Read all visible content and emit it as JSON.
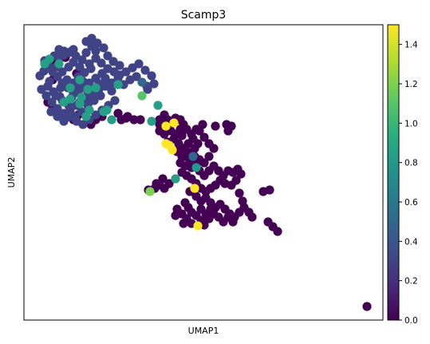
{
  "chart_data": {
    "type": "scatter",
    "title": "Scamp3",
    "xlabel": "UMAP1",
    "ylabel": "UMAP2",
    "colorbar": {
      "colormap": "viridis",
      "range": [
        0.0,
        1.5
      ],
      "ticks": [
        "0.0",
        "0.2",
        "0.4",
        "0.6",
        "0.8",
        "1.0",
        "1.2",
        "1.4"
      ]
    },
    "grid": false,
    "x_ticks_shown": false,
    "y_ticks_shown": false,
    "points": [
      [
        55,
        89,
        0.3
      ],
      [
        62,
        102,
        0.3
      ],
      [
        50,
        95,
        0.3
      ],
      [
        68,
        78,
        0.0
      ],
      [
        74,
        72,
        0.3
      ],
      [
        80,
        69,
        0.3
      ],
      [
        88,
        65,
        0.3
      ],
      [
        95,
        70,
        0.3
      ],
      [
        103,
        75,
        0.3
      ],
      [
        112,
        80,
        0.3
      ],
      [
        120,
        73,
        0.3
      ],
      [
        127,
        79,
        0.3
      ],
      [
        135,
        70,
        0.3
      ],
      [
        142,
        77,
        0.3
      ],
      [
        150,
        82,
        0.3
      ],
      [
        158,
        90,
        0.3
      ],
      [
        166,
        85,
        0.3
      ],
      [
        174,
        80,
        0.3
      ],
      [
        182,
        88,
        0.3
      ],
      [
        190,
        95,
        0.3
      ],
      [
        193,
        105,
        0.3
      ],
      [
        185,
        112,
        0.3
      ],
      [
        178,
        103,
        0.5
      ],
      [
        171,
        96,
        0.3
      ],
      [
        163,
        100,
        0.3
      ],
      [
        155,
        106,
        0.3
      ],
      [
        148,
        98,
        0.3
      ],
      [
        140,
        104,
        0.3
      ],
      [
        132,
        98,
        0.3
      ],
      [
        124,
        105,
        0.3
      ],
      [
        117,
        112,
        0.3
      ],
      [
        110,
        118,
        0.3
      ],
      [
        103,
        125,
        0.3
      ],
      [
        96,
        132,
        0.3
      ],
      [
        88,
        138,
        0.3
      ],
      [
        80,
        142,
        0.3
      ],
      [
        72,
        136,
        0.3
      ],
      [
        65,
        128,
        0.3
      ],
      [
        58,
        120,
        0.3
      ],
      [
        52,
        112,
        0.3
      ],
      [
        60,
        108,
        0.3
      ],
      [
        67,
        115,
        0.3
      ],
      [
        75,
        121,
        0.3
      ],
      [
        82,
        128,
        0.3
      ],
      [
        90,
        122,
        0.3
      ],
      [
        98,
        116,
        0.3
      ],
      [
        105,
        110,
        0.3
      ],
      [
        112,
        104,
        0.3
      ],
      [
        120,
        98,
        0.3
      ],
      [
        128,
        92,
        0.3
      ],
      [
        135,
        86,
        0.3
      ],
      [
        143,
        90,
        0.3
      ],
      [
        150,
        94,
        0.3
      ],
      [
        72,
        96,
        0.3
      ],
      [
        78,
        104,
        0.3
      ],
      [
        85,
        110,
        0.3
      ],
      [
        92,
        104,
        0.3
      ],
      [
        98,
        96,
        0.3
      ],
      [
        106,
        91,
        0.3
      ],
      [
        114,
        86,
        0.3
      ],
      [
        64,
        140,
        0.3
      ],
      [
        72,
        146,
        0.3
      ],
      [
        80,
        152,
        0.3
      ],
      [
        88,
        146,
        0.3
      ],
      [
        96,
        152,
        0.3
      ],
      [
        104,
        156,
        0.3
      ],
      [
        112,
        150,
        0.3
      ],
      [
        120,
        144,
        0.3
      ],
      [
        128,
        138,
        0.3
      ],
      [
        136,
        132,
        0.3
      ],
      [
        144,
        126,
        0.3
      ],
      [
        126,
        120,
        0.3
      ],
      [
        118,
        126,
        0.3
      ],
      [
        110,
        132,
        0.3
      ],
      [
        102,
        140,
        0.3
      ],
      [
        94,
        146,
        0.3
      ],
      [
        86,
        132,
        0.3
      ],
      [
        78,
        126,
        0.3
      ],
      [
        70,
        120,
        0.3
      ],
      [
        100,
        128,
        0.3
      ],
      [
        108,
        124,
        0.3
      ],
      [
        116,
        118,
        0.3
      ],
      [
        124,
        112,
        0.3
      ],
      [
        132,
        108,
        0.3
      ],
      [
        140,
        114,
        0.3
      ],
      [
        92,
        116,
        0.3
      ],
      [
        84,
        100,
        0.3
      ],
      [
        76,
        110,
        0.3
      ],
      [
        96,
        108,
        0.3
      ],
      [
        104,
        102,
        0.3
      ],
      [
        60,
        82,
        0.3
      ],
      [
        66,
        90,
        0.3
      ],
      [
        70,
        84,
        0.3
      ],
      [
        78,
        90,
        0.3
      ],
      [
        86,
        84,
        0.3
      ],
      [
        92,
        78,
        0.3
      ],
      [
        100,
        84,
        0.3
      ],
      [
        108,
        66,
        0.3
      ],
      [
        115,
        58,
        0.3
      ],
      [
        108,
        52,
        0.3
      ],
      [
        115,
        48,
        0.3
      ],
      [
        122,
        54,
        0.3
      ],
      [
        130,
        60,
        0.3
      ],
      [
        120,
        64,
        0.3
      ],
      [
        86,
        66,
        0.3
      ],
      [
        92,
        62,
        0.3
      ],
      [
        80,
        64,
        0.3
      ],
      [
        74,
        62,
        0.3
      ],
      [
        68,
        70,
        0.3
      ],
      [
        56,
        76,
        0.3
      ],
      [
        56,
        80,
        0.85
      ],
      [
        62,
        74,
        0.85
      ],
      [
        74,
        80,
        0.85
      ],
      [
        88,
        124,
        0.85
      ],
      [
        102,
        122,
        0.85
      ],
      [
        100,
        130,
        0.85
      ],
      [
        112,
        138,
        0.85
      ],
      [
        108,
        146,
        0.85
      ],
      [
        130,
        140,
        0.85
      ],
      [
        134,
        138,
        0.85
      ],
      [
        148,
        106,
        0.85
      ],
      [
        158,
        148,
        0.0
      ],
      [
        148,
        142,
        0.0
      ],
      [
        140,
        150,
        0.85
      ],
      [
        114,
        156,
        0.0
      ],
      [
        120,
        150,
        0.0
      ],
      [
        128,
        146,
        0.0
      ],
      [
        92,
        150,
        0.0
      ],
      [
        98,
        144,
        0.0
      ],
      [
        82,
        148,
        0.0
      ],
      [
        66,
        134,
        0.0
      ],
      [
        60,
        128,
        0.0
      ],
      [
        100,
        100,
        0.85
      ],
      [
        80,
        128,
        0.85
      ],
      [
        88,
        110,
        0.85
      ],
      [
        110,
        112,
        0.85
      ],
      [
        120,
        110,
        0.85
      ],
      [
        184,
        108,
        0.3
      ],
      [
        198,
        132,
        0.85
      ],
      [
        178,
        120,
        1.1
      ],
      [
        176,
        150,
        0.0
      ],
      [
        168,
        150,
        0.0
      ],
      [
        160,
        146,
        0.0
      ],
      [
        152,
        150,
        0.0
      ],
      [
        96,
        92,
        0.0
      ],
      [
        66,
        100,
        0.0
      ],
      [
        60,
        108,
        0.0
      ],
      [
        72,
        74,
        0.0
      ],
      [
        82,
        72,
        0.0
      ],
      [
        200,
        150,
        0.0
      ],
      [
        190,
        152,
        0.85
      ],
      [
        206,
        144,
        0.0
      ],
      [
        210,
        150,
        0.0
      ],
      [
        214,
        156,
        0.0
      ],
      [
        216,
        152,
        0.0
      ],
      [
        220,
        148,
        0.0
      ],
      [
        226,
        150,
        0.0
      ],
      [
        218,
        154,
        1.5
      ],
      [
        208,
        158,
        1.5
      ],
      [
        200,
        156,
        0.0
      ],
      [
        230,
        156,
        0.0
      ],
      [
        234,
        162,
        0.0
      ],
      [
        226,
        162,
        0.0
      ],
      [
        220,
        168,
        0.0
      ],
      [
        214,
        164,
        0.0
      ],
      [
        206,
        168,
        0.0
      ],
      [
        200,
        164,
        0.0
      ],
      [
        210,
        178,
        0.0
      ],
      [
        218,
        174,
        0.0
      ],
      [
        224,
        180,
        0.0
      ],
      [
        230,
        186,
        0.0
      ],
      [
        236,
        180,
        0.0
      ],
      [
        242,
        174,
        0.0
      ],
      [
        248,
        180,
        0.0
      ],
      [
        244,
        186,
        0.0
      ],
      [
        238,
        192,
        0.0
      ],
      [
        232,
        196,
        0.0
      ],
      [
        226,
        204,
        0.0
      ],
      [
        232,
        208,
        0.0
      ],
      [
        238,
        202,
        0.0
      ],
      [
        244,
        196,
        0.0
      ],
      [
        250,
        200,
        0.0
      ],
      [
        246,
        206,
        0.0
      ],
      [
        240,
        210,
        0.0
      ],
      [
        242,
        196,
        0.5
      ],
      [
        246,
        210,
        0.8
      ],
      [
        208,
        180,
        1.5
      ],
      [
        212,
        182,
        1.5
      ],
      [
        216,
        188,
        1.5
      ],
      [
        222,
        190,
        0.0
      ],
      [
        228,
        196,
        0.0
      ],
      [
        234,
        190,
        0.0
      ],
      [
        250,
        164,
        0.0
      ],
      [
        256,
        172,
        0.0
      ],
      [
        262,
        180,
        0.0
      ],
      [
        268,
        186,
        0.0
      ],
      [
        262,
        196,
        0.0
      ],
      [
        256,
        204,
        0.0
      ],
      [
        250,
        214,
        0.0
      ],
      [
        256,
        220,
        0.0
      ],
      [
        262,
        214,
        0.0
      ],
      [
        268,
        208,
        0.0
      ],
      [
        274,
        214,
        0.0
      ],
      [
        280,
        220,
        0.0
      ],
      [
        286,
        214,
        0.0
      ],
      [
        292,
        216,
        0.0
      ],
      [
        298,
        212,
        0.0
      ],
      [
        302,
        218,
        0.0
      ],
      [
        296,
        226,
        0.0
      ],
      [
        290,
        232,
        0.0
      ],
      [
        282,
        230,
        0.0
      ],
      [
        276,
        226,
        0.0
      ],
      [
        270,
        232,
        0.0
      ],
      [
        264,
        236,
        0.0
      ],
      [
        258,
        240,
        0.0
      ],
      [
        252,
        236,
        0.0
      ],
      [
        246,
        230,
        0.0
      ],
      [
        240,
        224,
        0.0
      ],
      [
        234,
        220,
        0.0
      ],
      [
        228,
        216,
        0.0
      ],
      [
        220,
        224,
        0.85
      ],
      [
        212,
        230,
        0.0
      ],
      [
        206,
        236,
        0.0
      ],
      [
        200,
        232,
        0.0
      ],
      [
        194,
        236,
        0.0
      ],
      [
        186,
        238,
        0.0
      ],
      [
        188,
        240,
        1.2
      ],
      [
        196,
        230,
        0.0
      ],
      [
        204,
        224,
        0.0
      ],
      [
        244,
        236,
        1.5
      ],
      [
        238,
        240,
        0.0
      ],
      [
        246,
        246,
        0.0
      ],
      [
        252,
        252,
        0.0
      ],
      [
        258,
        248,
        0.0
      ],
      [
        264,
        254,
        0.0
      ],
      [
        270,
        260,
        0.0
      ],
      [
        276,
        256,
        0.0
      ],
      [
        282,
        262,
        0.0
      ],
      [
        288,
        268,
        0.0
      ],
      [
        294,
        272,
        0.0
      ],
      [
        300,
        266,
        0.0
      ],
      [
        306,
        260,
        0.0
      ],
      [
        312,
        266,
        0.0
      ],
      [
        316,
        272,
        0.0
      ],
      [
        300,
        242,
        0.0
      ],
      [
        304,
        252,
        0.0
      ],
      [
        330,
        240,
        0.0
      ],
      [
        338,
        238,
        0.0
      ],
      [
        232,
        254,
        0.0
      ],
      [
        236,
        260,
        0.0
      ],
      [
        240,
        266,
        0.0
      ],
      [
        246,
        270,
        0.0
      ],
      [
        252,
        276,
        0.0
      ],
      [
        256,
        282,
        0.0
      ],
      [
        248,
        283,
        1.5
      ],
      [
        240,
        280,
        0.0
      ],
      [
        234,
        274,
        0.0
      ],
      [
        228,
        268,
        0.0
      ],
      [
        222,
        262,
        0.0
      ],
      [
        220,
        270,
        0.0
      ],
      [
        230,
        280,
        0.0
      ],
      [
        262,
        274,
        0.0
      ],
      [
        268,
        268,
        0.0
      ],
      [
        274,
        272,
        0.0
      ],
      [
        280,
        278,
        0.0
      ],
      [
        286,
        272,
        0.0
      ],
      [
        292,
        278,
        0.0
      ],
      [
        264,
        262,
        0.0
      ],
      [
        258,
        268,
        0.0
      ],
      [
        252,
        262,
        0.0
      ],
      [
        228,
        170,
        0.0
      ],
      [
        240,
        168,
        0.0
      ],
      [
        246,
        162,
        0.0
      ],
      [
        270,
        158,
        0.0
      ],
      [
        284,
        156,
        0.0
      ],
      [
        290,
        158,
        0.0
      ],
      [
        286,
        164,
        0.0
      ],
      [
        254,
        156,
        0.0
      ],
      [
        336,
        278,
        0.0
      ],
      [
        342,
        284,
        0.0
      ],
      [
        348,
        290,
        0.0
      ],
      [
        460,
        384,
        0.0
      ]
    ]
  }
}
